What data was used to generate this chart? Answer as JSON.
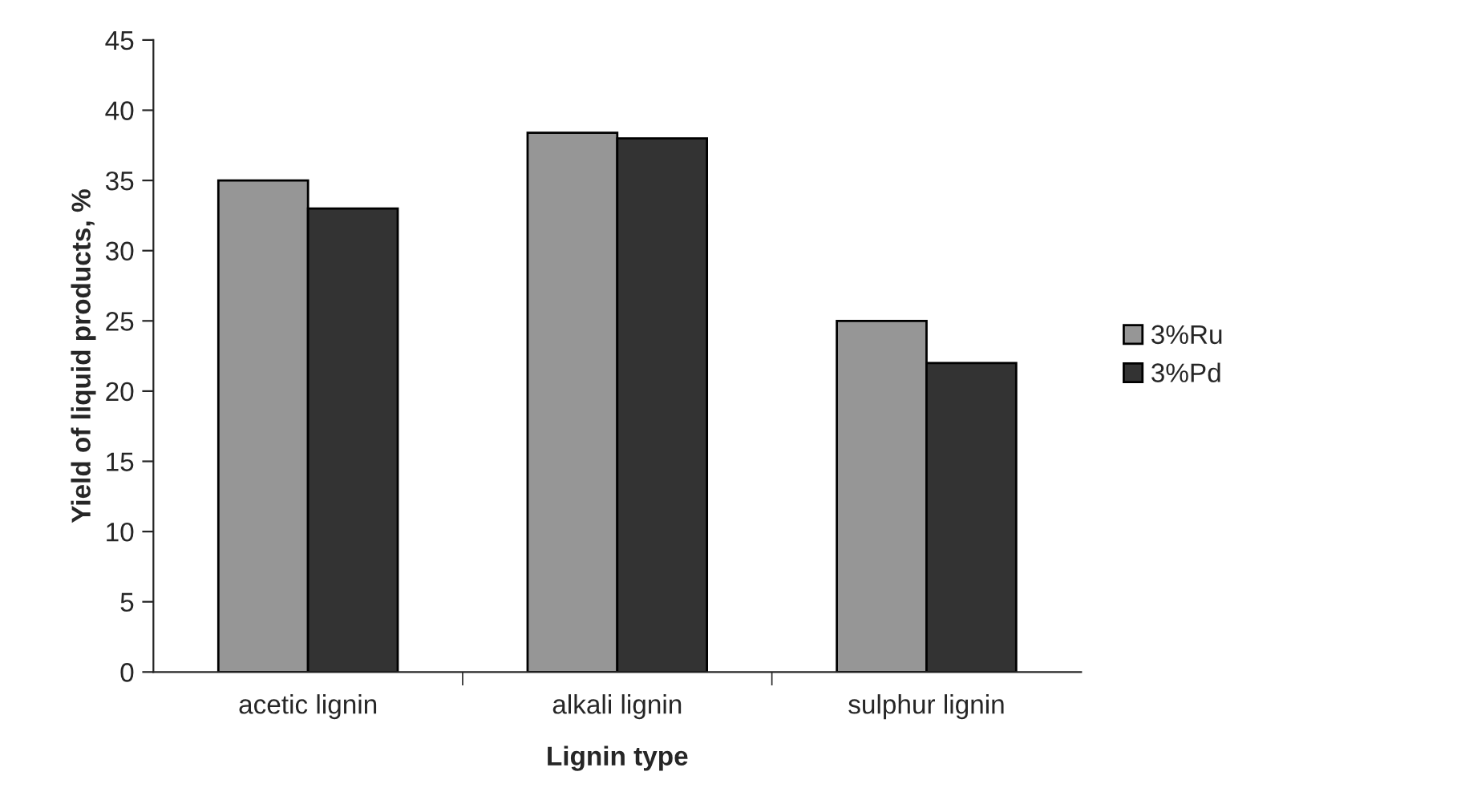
{
  "chart_data": {
    "type": "bar",
    "xlabel": "Lignin type",
    "ylabel": "Yield of liquid products, %",
    "categories": [
      "acetic lignin",
      "alkali lignin",
      "sulphur lignin"
    ],
    "series": [
      {
        "name": "3%Ru",
        "color": "#969696",
        "values": [
          35,
          38.4,
          25
        ]
      },
      {
        "name": "3%Pd",
        "color": "#333333",
        "values": [
          33,
          38,
          22
        ]
      }
    ],
    "ylim": [
      0,
      45
    ],
    "yticks": [
      0,
      5,
      10,
      15,
      20,
      25,
      30,
      35,
      40,
      45
    ],
    "grid": false,
    "legend": "right"
  }
}
